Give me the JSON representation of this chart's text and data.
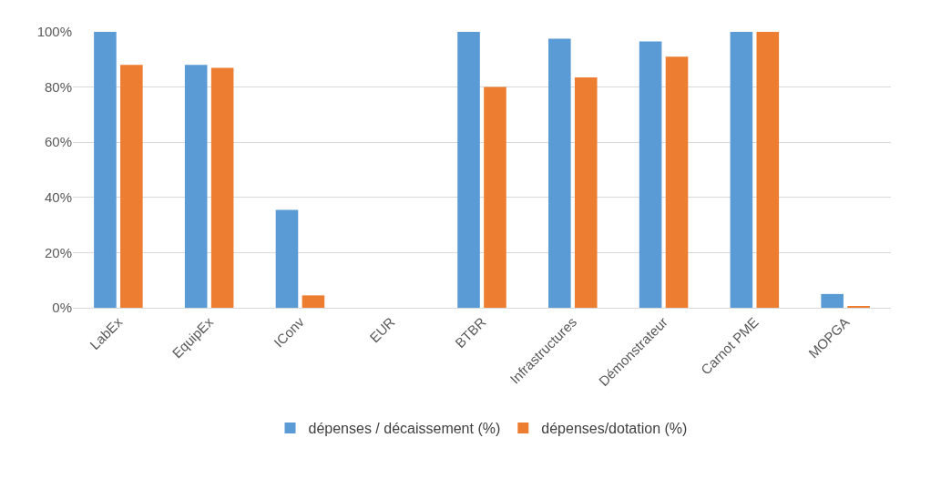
{
  "chart_data": {
    "type": "bar",
    "categories": [
      "LabEx",
      "EquipEx",
      "IConv",
      "EUR",
      "BTBR",
      "Infrastructures",
      "Démonstrateur",
      "Carnot PME",
      "MOPGA"
    ],
    "series": [
      {
        "name": "dépenses / décaissement (%)",
        "color": "#5b9bd5",
        "values": [
          100,
          88,
          35.5,
          0,
          100,
          97.5,
          96.5,
          100,
          5
        ]
      },
      {
        "name": "dépenses/dotation (%)",
        "color": "#ed7d31",
        "values": [
          88,
          87,
          4.5,
          0,
          80,
          83.5,
          91,
          100,
          0.5
        ]
      }
    ],
    "ylim": [
      0,
      100
    ],
    "yticks": [
      {
        "value": 0,
        "label": "0%"
      },
      {
        "value": 20,
        "label": "20%"
      },
      {
        "value": 40,
        "label": "40%"
      },
      {
        "value": 60,
        "label": "60%"
      },
      {
        "value": 80,
        "label": "80%"
      },
      {
        "value": 100,
        "label": "100%"
      }
    ],
    "grid": "y",
    "legend": "bottom"
  }
}
